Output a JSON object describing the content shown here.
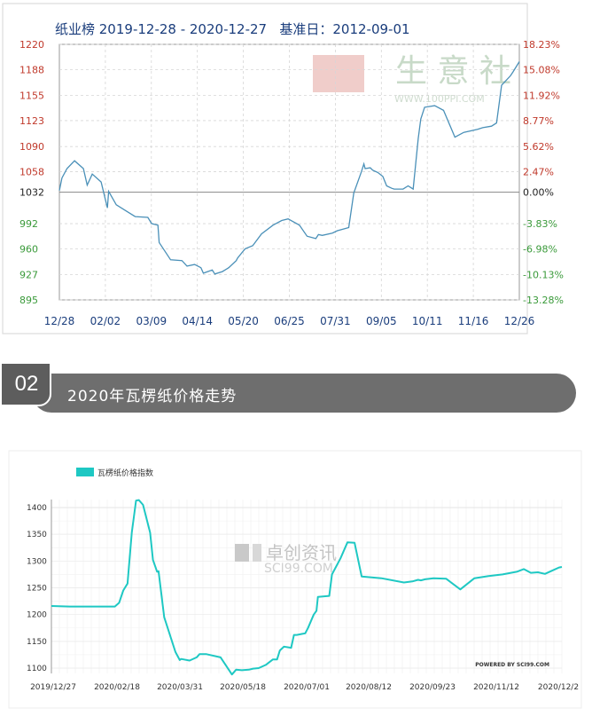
{
  "chart_data": [
    {
      "type": "line",
      "title": "纸业榜 2019-12-28 - 2020-12-27   基准日：2012-09-01",
      "watermark": "生 意 社",
      "watermark_url": "WWW.100PPI.COM",
      "x_ticks": [
        "12/28",
        "02/02",
        "03/09",
        "04/14",
        "05/20",
        "06/25",
        "07/31",
        "09/05",
        "10/11",
        "11/16",
        "12/26"
      ],
      "y_left_ticks": [
        "1220",
        "1188",
        "1155",
        "1123",
        "1090",
        "1058",
        "1032",
        "992",
        "960",
        "927",
        "895"
      ],
      "y_right_ticks": [
        "18.23%",
        "15.08%",
        "11.92%",
        "8.77%",
        "5.62%",
        "2.47%",
        "0.00%",
        "-3.83%",
        "-6.98%",
        "-10.13%",
        "-13.28%"
      ],
      "baseline": 1032,
      "ylim": [
        895,
        1220
      ],
      "colors": {
        "line": "#4a90b8",
        "up_label": "#c0392b",
        "down_label": "#3a9a3a",
        "base_label": "#222222"
      },
      "series": [
        {
          "x": [
            0,
            2,
            6,
            12,
            19,
            22,
            26,
            33,
            38,
            39,
            45,
            53,
            60,
            70,
            73,
            78,
            79,
            88,
            97,
            101,
            107,
            112,
            114,
            121,
            123,
            129,
            134,
            140,
            141,
            145,
            147,
            153,
            160,
            169,
            176,
            181,
            190,
            196,
            203,
            205,
            208,
            216,
            220,
            229,
            233,
            239,
            241,
            242,
            246,
            248,
            252,
            256,
            259,
            263,
            265,
            272,
            276,
            280,
            284,
            286,
            289,
            297,
            304,
            313,
            320,
            331,
            335,
            342,
            346,
            350,
            357,
            359,
            364
          ],
          "y": [
            1034,
            1050,
            1062,
            1072,
            1062,
            1041,
            1055,
            1045,
            1012,
            1033,
            1016,
            1008,
            1001,
            1000,
            992,
            990,
            968,
            946,
            945,
            938,
            940,
            936,
            929,
            933,
            928,
            931,
            936,
            945,
            948,
            956,
            960,
            964,
            979,
            990,
            996,
            998,
            990,
            976,
            973,
            978,
            977,
            980,
            983,
            987,
            1031,
            1058,
            1068,
            1062,
            1063,
            1060,
            1057,
            1052,
            1040,
            1037,
            1036,
            1036,
            1040,
            1036,
            1100,
            1125,
            1140,
            1142,
            1136,
            1102,
            1108,
            1112,
            1114,
            1116,
            1120,
            1168,
            1180,
            1185,
            1198
          ]
        }
      ]
    },
    {
      "type": "line",
      "legend": [
        "瓦楞纸价格指数"
      ],
      "watermark": "卓创资讯",
      "watermark_sub": "SCI99.COM",
      "footer": "POWERED BY SCI99.COM",
      "x_ticks": [
        "2019/12/27",
        "2020/02/18",
        "2020/03/31",
        "2020/05/18",
        "2020/07/01",
        "2020/08/12",
        "2020/09/23",
        "2020/11/12",
        "2020/12/2"
      ],
      "y_ticks": [
        "1400",
        "1350",
        "1300",
        "1250",
        "1200",
        "1150",
        "1100"
      ],
      "ylim": [
        1090,
        1415
      ],
      "colors": {
        "line": "#1ec8c3"
      },
      "series": [
        {
          "name": "瓦楞纸价格指数",
          "x": [
            0,
            13,
            40,
            42,
            45,
            48,
            51,
            54,
            55,
            57,
            60,
            62,
            65,
            70,
            72,
            75,
            76,
            80,
            88,
            91,
            92,
            98,
            103,
            105,
            110,
            120,
            128,
            131,
            135,
            140,
            143,
            147,
            152,
            157,
            160,
            162,
            165,
            170,
            172,
            174,
            178,
            180,
            182,
            186,
            188,
            189,
            197,
            199,
            205,
            210,
            215,
            220,
            234,
            250,
            256,
            260,
            262,
            265,
            271,
            280,
            290,
            300,
            310,
            320,
            330,
            335,
            340,
            345,
            350,
            355,
            360,
            362
          ],
          "y": [
            1216,
            1215,
            1215,
            1215,
            1215,
            1222,
            1245,
            1258,
            1290,
            1353,
            1413,
            1414,
            1405,
            1353,
            1302,
            1280,
            1281,
            1195,
            1130,
            1115,
            1117,
            1114,
            1120,
            1126,
            1126,
            1120,
            1088,
            1097,
            1096,
            1097,
            1099,
            1100,
            1106,
            1116,
            1116,
            1133,
            1140,
            1138,
            1162,
            1162,
            1164,
            1165,
            1175,
            1200,
            1207,
            1233,
            1235,
            1275,
            1305,
            1335,
            1334,
            1271,
            1268,
            1260,
            1262,
            1265,
            1264,
            1266,
            1268,
            1267,
            1247,
            1268,
            1272,
            1275,
            1280,
            1285,
            1278,
            1279,
            1276,
            1282,
            1288,
            1289
          ]
        }
      ]
    }
  ],
  "section": {
    "number": "02",
    "title": "2020年瓦楞纸价格走势"
  }
}
